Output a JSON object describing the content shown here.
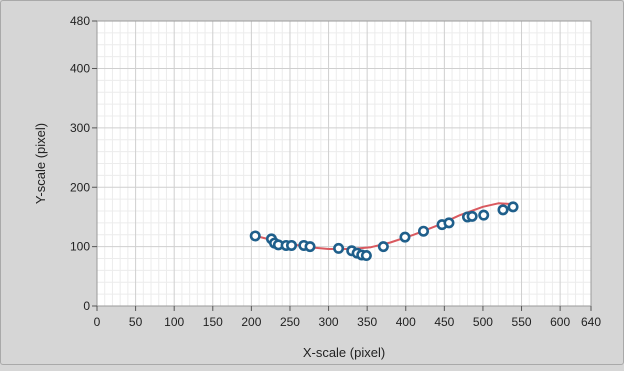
{
  "chart_data": {
    "type": "scatter",
    "xlabel": "X-scale (pixel)",
    "ylabel": "Y-scale (pixel)",
    "xlim": [
      0,
      640
    ],
    "ylim": [
      0,
      480
    ],
    "x_ticks": [
      0,
      50,
      100,
      150,
      200,
      250,
      300,
      350,
      400,
      450,
      500,
      550,
      600,
      640
    ],
    "y_ticks": [
      0,
      100,
      200,
      300,
      400,
      480
    ],
    "grid": true,
    "colors": {
      "points": "#1f5f8b",
      "fit_line": "#d9595f",
      "plot_background": "#ffffff",
      "major_grid": "#cfcfcf",
      "minor_grid": "#ececec"
    },
    "series": [
      {
        "type": "scatter",
        "points": [
          [
            205,
            118
          ],
          [
            226,
            113
          ],
          [
            230,
            106
          ],
          [
            235,
            103
          ],
          [
            245,
            102
          ],
          [
            252,
            102
          ],
          [
            268,
            102
          ],
          [
            276,
            100
          ],
          [
            313,
            97
          ],
          [
            330,
            93
          ],
          [
            337,
            89
          ],
          [
            343,
            86
          ],
          [
            349,
            85
          ],
          [
            371,
            100
          ],
          [
            399,
            116
          ],
          [
            423,
            126
          ],
          [
            447,
            137
          ],
          [
            456,
            140
          ],
          [
            480,
            150
          ],
          [
            486,
            151
          ],
          [
            501,
            153
          ],
          [
            526,
            162
          ],
          [
            539,
            167
          ]
        ]
      },
      {
        "type": "line",
        "points": [
          [
            205,
            118
          ],
          [
            240,
            107
          ],
          [
            275,
            99
          ],
          [
            300,
            96
          ],
          [
            330,
            96
          ],
          [
            355,
            99
          ],
          [
            380,
            107
          ],
          [
            410,
            120
          ],
          [
            440,
            135
          ],
          [
            470,
            153
          ],
          [
            500,
            167
          ],
          [
            520,
            173
          ],
          [
            535,
            172
          ]
        ]
      }
    ]
  }
}
